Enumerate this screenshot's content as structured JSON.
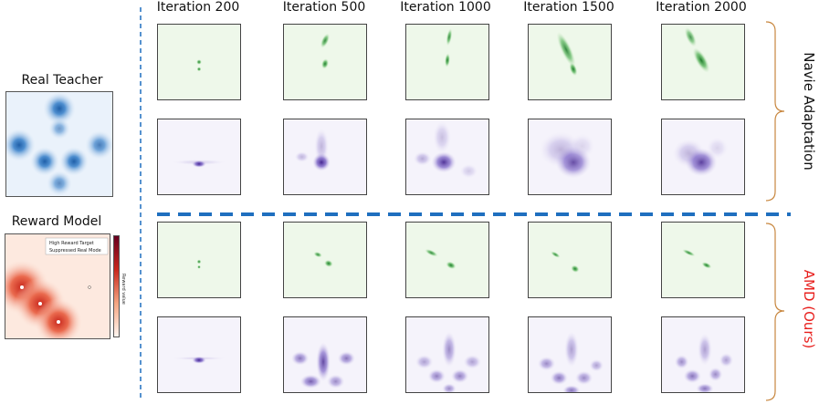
{
  "columns": [
    "Iteration 200",
    "Iteration 500",
    "Iteration 1000",
    "Iteration 1500",
    "Iteration 2000"
  ],
  "left_panels": {
    "real_teacher_title": "Real Teacher",
    "reward_model_title": "Reward Model",
    "legend": {
      "high_reward_target": "High Reward Target",
      "suppressed_real_mode": "Suppressed Real Mode"
    },
    "colorbar_label": "Reward value"
  },
  "sections": [
    {
      "label": "Navie Adaptation",
      "color": "#111111"
    },
    {
      "label": "AMD (Ours)",
      "color": "#e8201e"
    }
  ],
  "colors": {
    "green": "#1f7a2c",
    "green_bg": "#eef8ea",
    "purple": "#3f1f8c",
    "purple_bg": "#f5f3fb",
    "blue": "#1f5fa8",
    "red": "#c8281d",
    "divider": "#1f6fbf",
    "brace": "#c8873f"
  }
}
